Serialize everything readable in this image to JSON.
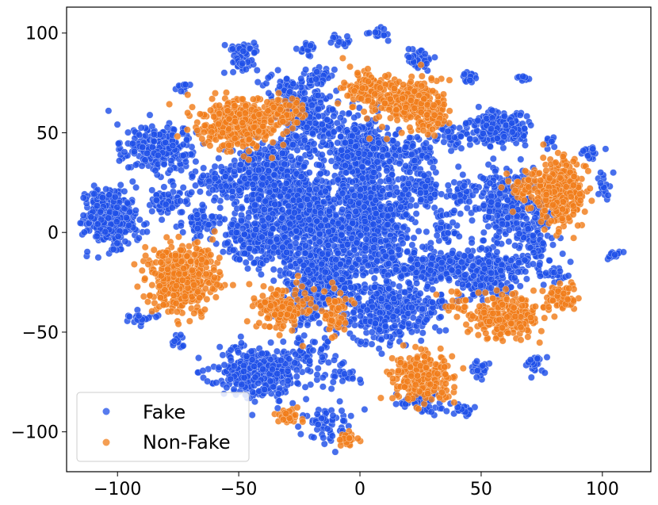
{
  "chart_data": {
    "type": "scatter",
    "title": "",
    "xlabel": "",
    "ylabel": "",
    "xlim": [
      -121,
      120
    ],
    "ylim": [
      -120,
      113
    ],
    "xticks": [
      -100,
      -50,
      0,
      50,
      100
    ],
    "yticks": [
      -100,
      -50,
      0,
      50,
      100
    ],
    "xtick_labels": [
      "−100",
      "−50",
      "0",
      "50",
      "100"
    ],
    "ytick_labels": [
      "−100",
      "−50",
      "0",
      "50",
      "100"
    ],
    "grid": false,
    "legend_position": "lower-left",
    "series": [
      {
        "name": "Fake",
        "color": "#1f4fe8",
        "clusters": [
          {
            "x": -103,
            "y": 7,
            "sx": 5,
            "sy": 7,
            "n": 420
          },
          {
            "x": -90,
            "y": -43,
            "sx": 3,
            "sy": 1.5,
            "n": 25
          },
          {
            "x": -83,
            "y": 42,
            "sx": 7,
            "sy": 6,
            "n": 230
          },
          {
            "x": -80,
            "y": 16,
            "sx": 4,
            "sy": 4,
            "n": 80
          },
          {
            "x": -75,
            "y": -55,
            "sx": 2,
            "sy": 2,
            "n": 15
          },
          {
            "x": -73,
            "y": 74,
            "sx": 2,
            "sy": 1.5,
            "n": 15
          },
          {
            "x": -65,
            "y": 5,
            "sx": 4,
            "sy": 3,
            "n": 60
          },
          {
            "x": -55,
            "y": 25,
            "sx": 8,
            "sy": 6,
            "n": 120
          },
          {
            "x": -48,
            "y": 88,
            "sx": 3,
            "sy": 4,
            "n": 60
          },
          {
            "x": -42,
            "y": -4,
            "sx": 7,
            "sy": 6,
            "n": 200
          },
          {
            "x": -42,
            "y": -70,
            "sx": 9,
            "sy": 6,
            "n": 380
          },
          {
            "x": -38,
            "y": 30,
            "sx": 9,
            "sy": 10,
            "n": 300
          },
          {
            "x": -30,
            "y": 72,
            "sx": 5,
            "sy": 4,
            "n": 60
          },
          {
            "x": -25,
            "y": 10,
            "sx": 10,
            "sy": 10,
            "n": 550
          },
          {
            "x": -25,
            "y": -38,
            "sx": 5,
            "sy": 5,
            "n": 60
          },
          {
            "x": -22,
            "y": 56,
            "sx": 7,
            "sy": 8,
            "n": 220
          },
          {
            "x": -22,
            "y": 92,
            "sx": 2,
            "sy": 1.5,
            "n": 20
          },
          {
            "x": -20,
            "y": -60,
            "sx": 5,
            "sy": 5,
            "n": 50
          },
          {
            "x": -17,
            "y": 78,
            "sx": 3,
            "sy": 3,
            "n": 40
          },
          {
            "x": -15,
            "y": -95,
            "sx": 6,
            "sy": 5,
            "n": 60
          },
          {
            "x": -14,
            "y": -20,
            "sx": 10,
            "sy": 10,
            "n": 500
          },
          {
            "x": -8,
            "y": 96,
            "sx": 2,
            "sy": 1.5,
            "n": 15
          },
          {
            "x": -8,
            "y": -70,
            "sx": 4,
            "sy": 4,
            "n": 30
          },
          {
            "x": 0,
            "y": 40,
            "sx": 7,
            "sy": 10,
            "n": 350
          },
          {
            "x": 5,
            "y": 8,
            "sx": 9,
            "sy": 10,
            "n": 450
          },
          {
            "x": 8,
            "y": 100,
            "sx": 2,
            "sy": 1.5,
            "n": 20
          },
          {
            "x": 10,
            "y": -40,
            "sx": 8,
            "sy": 8,
            "n": 250
          },
          {
            "x": 15,
            "y": -15,
            "sx": 5,
            "sy": 6,
            "n": 80
          },
          {
            "x": 20,
            "y": 40,
            "sx": 6,
            "sy": 5,
            "n": 80
          },
          {
            "x": 24,
            "y": 87,
            "sx": 3,
            "sy": 2.5,
            "n": 50
          },
          {
            "x": 25,
            "y": 22,
            "sx": 5,
            "sy": 5,
            "n": 80
          },
          {
            "x": 25,
            "y": -85,
            "sx": 5,
            "sy": 3,
            "n": 50
          },
          {
            "x": 30,
            "y": -38,
            "sx": 5,
            "sy": 5,
            "n": 60
          },
          {
            "x": 33,
            "y": -18,
            "sx": 9,
            "sy": 4,
            "n": 200
          },
          {
            "x": 36,
            "y": 2,
            "sx": 3,
            "sy": 5,
            "n": 40
          },
          {
            "x": 38,
            "y": 48,
            "sx": 3,
            "sy": 3,
            "n": 40
          },
          {
            "x": 42,
            "y": 20,
            "sx": 3,
            "sy": 4,
            "n": 40
          },
          {
            "x": 42,
            "y": -89,
            "sx": 3,
            "sy": 1.5,
            "n": 30
          },
          {
            "x": 45,
            "y": 78,
            "sx": 2,
            "sy": 1.5,
            "n": 20
          },
          {
            "x": 47,
            "y": -28,
            "sx": 3,
            "sy": 3,
            "n": 40
          },
          {
            "x": 50,
            "y": -68,
            "sx": 2,
            "sy": 2,
            "n": 20
          },
          {
            "x": 55,
            "y": -20,
            "sx": 6,
            "sy": 8,
            "n": 200
          },
          {
            "x": 57,
            "y": 52,
            "sx": 6,
            "sy": 4,
            "n": 240
          },
          {
            "x": 60,
            "y": 15,
            "sx": 6,
            "sy": 9,
            "n": 200
          },
          {
            "x": 67,
            "y": 77,
            "sx": 1.5,
            "sy": 1.5,
            "n": 10
          },
          {
            "x": 72,
            "y": 0,
            "sx": 5,
            "sy": 10,
            "n": 130
          },
          {
            "x": 72,
            "y": -66,
            "sx": 2,
            "sy": 2.5,
            "n": 25
          },
          {
            "x": 78,
            "y": 45,
            "sx": 2,
            "sy": 1.5,
            "n": 15
          },
          {
            "x": 80,
            "y": -20,
            "sx": 3,
            "sy": 3,
            "n": 25
          },
          {
            "x": 95,
            "y": 40,
            "sx": 2,
            "sy": 2,
            "n": 20
          },
          {
            "x": 100,
            "y": 25,
            "sx": 3,
            "sy": 4,
            "n": 20
          },
          {
            "x": 105,
            "y": -10,
            "sx": 1.5,
            "sy": 1.5,
            "n": 12
          }
        ]
      },
      {
        "name": "Non-Fake",
        "color": "#f07d1a",
        "clusters": [
          {
            "x": -73,
            "y": -23,
            "sx": 7,
            "sy": 8,
            "n": 460
          },
          {
            "x": -50,
            "y": 55,
            "sx": 8,
            "sy": 6,
            "n": 420
          },
          {
            "x": -32,
            "y": 60,
            "sx": 4,
            "sy": 4,
            "n": 60
          },
          {
            "x": -33,
            "y": -38,
            "sx": 6,
            "sy": 5,
            "n": 160
          },
          {
            "x": -30,
            "y": -92,
            "sx": 2.5,
            "sy": 2.5,
            "n": 30
          },
          {
            "x": -10,
            "y": -40,
            "sx": 3,
            "sy": 6,
            "n": 60
          },
          {
            "x": -5,
            "y": -104,
            "sx": 3,
            "sy": 2,
            "n": 25
          },
          {
            "x": 2,
            "y": 72,
            "sx": 5,
            "sy": 4,
            "n": 120
          },
          {
            "x": 20,
            "y": 65,
            "sx": 7,
            "sy": 6,
            "n": 280
          },
          {
            "x": 30,
            "y": 58,
            "sx": 3,
            "sy": 4,
            "n": 60
          },
          {
            "x": 25,
            "y": -73,
            "sx": 6,
            "sy": 6,
            "n": 260
          },
          {
            "x": 42,
            "y": -35,
            "sx": 3,
            "sy": 2.5,
            "n": 20
          },
          {
            "x": 60,
            "y": -43,
            "sx": 7,
            "sy": 5,
            "n": 280
          },
          {
            "x": 68,
            "y": 22,
            "sx": 4,
            "sy": 4,
            "n": 50
          },
          {
            "x": 83,
            "y": 20,
            "sx": 5,
            "sy": 8,
            "n": 300
          },
          {
            "x": 83,
            "y": -32,
            "sx": 3,
            "sy": 3,
            "n": 80
          }
        ]
      }
    ]
  }
}
